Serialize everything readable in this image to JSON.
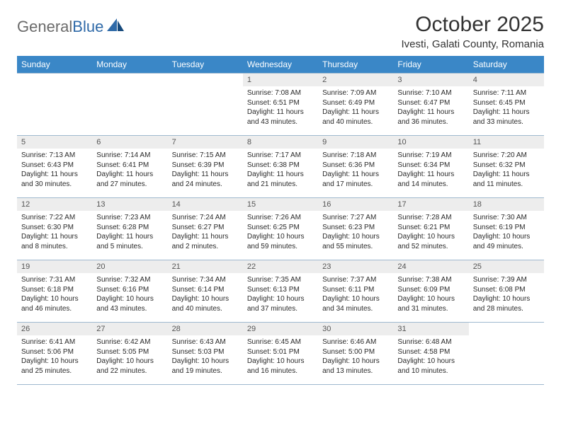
{
  "brand": {
    "part1": "General",
    "part2": "Blue"
  },
  "title": "October 2025",
  "location": "Ivesti, Galati County, Romania",
  "weekday_header_bg": "#3a87c7",
  "weekday_header_fg": "#ffffff",
  "daynum_bg": "#ededed",
  "rule_color": "#9fb9cf",
  "weekdays": [
    "Sunday",
    "Monday",
    "Tuesday",
    "Wednesday",
    "Thursday",
    "Friday",
    "Saturday"
  ],
  "weeks": [
    [
      {
        "blank": true
      },
      {
        "blank": true
      },
      {
        "blank": true
      },
      {
        "n": "1",
        "sr": "Sunrise: 7:08 AM",
        "ss": "Sunset: 6:51 PM",
        "dl": "Daylight: 11 hours and 43 minutes."
      },
      {
        "n": "2",
        "sr": "Sunrise: 7:09 AM",
        "ss": "Sunset: 6:49 PM",
        "dl": "Daylight: 11 hours and 40 minutes."
      },
      {
        "n": "3",
        "sr": "Sunrise: 7:10 AM",
        "ss": "Sunset: 6:47 PM",
        "dl": "Daylight: 11 hours and 36 minutes."
      },
      {
        "n": "4",
        "sr": "Sunrise: 7:11 AM",
        "ss": "Sunset: 6:45 PM",
        "dl": "Daylight: 11 hours and 33 minutes."
      }
    ],
    [
      {
        "n": "5",
        "sr": "Sunrise: 7:13 AM",
        "ss": "Sunset: 6:43 PM",
        "dl": "Daylight: 11 hours and 30 minutes."
      },
      {
        "n": "6",
        "sr": "Sunrise: 7:14 AM",
        "ss": "Sunset: 6:41 PM",
        "dl": "Daylight: 11 hours and 27 minutes."
      },
      {
        "n": "7",
        "sr": "Sunrise: 7:15 AM",
        "ss": "Sunset: 6:39 PM",
        "dl": "Daylight: 11 hours and 24 minutes."
      },
      {
        "n": "8",
        "sr": "Sunrise: 7:17 AM",
        "ss": "Sunset: 6:38 PM",
        "dl": "Daylight: 11 hours and 21 minutes."
      },
      {
        "n": "9",
        "sr": "Sunrise: 7:18 AM",
        "ss": "Sunset: 6:36 PM",
        "dl": "Daylight: 11 hours and 17 minutes."
      },
      {
        "n": "10",
        "sr": "Sunrise: 7:19 AM",
        "ss": "Sunset: 6:34 PM",
        "dl": "Daylight: 11 hours and 14 minutes."
      },
      {
        "n": "11",
        "sr": "Sunrise: 7:20 AM",
        "ss": "Sunset: 6:32 PM",
        "dl": "Daylight: 11 hours and 11 minutes."
      }
    ],
    [
      {
        "n": "12",
        "sr": "Sunrise: 7:22 AM",
        "ss": "Sunset: 6:30 PM",
        "dl": "Daylight: 11 hours and 8 minutes."
      },
      {
        "n": "13",
        "sr": "Sunrise: 7:23 AM",
        "ss": "Sunset: 6:28 PM",
        "dl": "Daylight: 11 hours and 5 minutes."
      },
      {
        "n": "14",
        "sr": "Sunrise: 7:24 AM",
        "ss": "Sunset: 6:27 PM",
        "dl": "Daylight: 11 hours and 2 minutes."
      },
      {
        "n": "15",
        "sr": "Sunrise: 7:26 AM",
        "ss": "Sunset: 6:25 PM",
        "dl": "Daylight: 10 hours and 59 minutes."
      },
      {
        "n": "16",
        "sr": "Sunrise: 7:27 AM",
        "ss": "Sunset: 6:23 PM",
        "dl": "Daylight: 10 hours and 55 minutes."
      },
      {
        "n": "17",
        "sr": "Sunrise: 7:28 AM",
        "ss": "Sunset: 6:21 PM",
        "dl": "Daylight: 10 hours and 52 minutes."
      },
      {
        "n": "18",
        "sr": "Sunrise: 7:30 AM",
        "ss": "Sunset: 6:19 PM",
        "dl": "Daylight: 10 hours and 49 minutes."
      }
    ],
    [
      {
        "n": "19",
        "sr": "Sunrise: 7:31 AM",
        "ss": "Sunset: 6:18 PM",
        "dl": "Daylight: 10 hours and 46 minutes."
      },
      {
        "n": "20",
        "sr": "Sunrise: 7:32 AM",
        "ss": "Sunset: 6:16 PM",
        "dl": "Daylight: 10 hours and 43 minutes."
      },
      {
        "n": "21",
        "sr": "Sunrise: 7:34 AM",
        "ss": "Sunset: 6:14 PM",
        "dl": "Daylight: 10 hours and 40 minutes."
      },
      {
        "n": "22",
        "sr": "Sunrise: 7:35 AM",
        "ss": "Sunset: 6:13 PM",
        "dl": "Daylight: 10 hours and 37 minutes."
      },
      {
        "n": "23",
        "sr": "Sunrise: 7:37 AM",
        "ss": "Sunset: 6:11 PM",
        "dl": "Daylight: 10 hours and 34 minutes."
      },
      {
        "n": "24",
        "sr": "Sunrise: 7:38 AM",
        "ss": "Sunset: 6:09 PM",
        "dl": "Daylight: 10 hours and 31 minutes."
      },
      {
        "n": "25",
        "sr": "Sunrise: 7:39 AM",
        "ss": "Sunset: 6:08 PM",
        "dl": "Daylight: 10 hours and 28 minutes."
      }
    ],
    [
      {
        "n": "26",
        "sr": "Sunrise: 6:41 AM",
        "ss": "Sunset: 5:06 PM",
        "dl": "Daylight: 10 hours and 25 minutes."
      },
      {
        "n": "27",
        "sr": "Sunrise: 6:42 AM",
        "ss": "Sunset: 5:05 PM",
        "dl": "Daylight: 10 hours and 22 minutes."
      },
      {
        "n": "28",
        "sr": "Sunrise: 6:43 AM",
        "ss": "Sunset: 5:03 PM",
        "dl": "Daylight: 10 hours and 19 minutes."
      },
      {
        "n": "29",
        "sr": "Sunrise: 6:45 AM",
        "ss": "Sunset: 5:01 PM",
        "dl": "Daylight: 10 hours and 16 minutes."
      },
      {
        "n": "30",
        "sr": "Sunrise: 6:46 AM",
        "ss": "Sunset: 5:00 PM",
        "dl": "Daylight: 10 hours and 13 minutes."
      },
      {
        "n": "31",
        "sr": "Sunrise: 6:48 AM",
        "ss": "Sunset: 4:58 PM",
        "dl": "Daylight: 10 hours and 10 minutes."
      },
      {
        "blank": true
      }
    ]
  ]
}
